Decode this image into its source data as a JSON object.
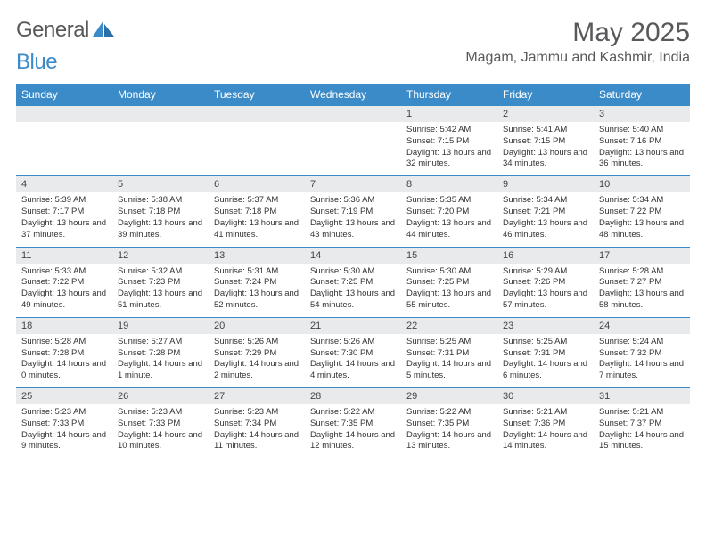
{
  "logo": {
    "word1": "General",
    "word2": "Blue",
    "accent_color": "#3b8bc9",
    "text_color": "#58595b"
  },
  "title": "May 2025",
  "location": "Magam, Jammu and Kashmir, India",
  "header_bg": "#3b8bc9",
  "daynum_bg": "#e9eaeb",
  "days_of_week": [
    "Sunday",
    "Monday",
    "Tuesday",
    "Wednesday",
    "Thursday",
    "Friday",
    "Saturday"
  ],
  "weeks": [
    [
      {
        "n": "",
        "sr": "",
        "ss": "",
        "dl": ""
      },
      {
        "n": "",
        "sr": "",
        "ss": "",
        "dl": ""
      },
      {
        "n": "",
        "sr": "",
        "ss": "",
        "dl": ""
      },
      {
        "n": "",
        "sr": "",
        "ss": "",
        "dl": ""
      },
      {
        "n": "1",
        "sr": "Sunrise: 5:42 AM",
        "ss": "Sunset: 7:15 PM",
        "dl": "Daylight: 13 hours and 32 minutes."
      },
      {
        "n": "2",
        "sr": "Sunrise: 5:41 AM",
        "ss": "Sunset: 7:15 PM",
        "dl": "Daylight: 13 hours and 34 minutes."
      },
      {
        "n": "3",
        "sr": "Sunrise: 5:40 AM",
        "ss": "Sunset: 7:16 PM",
        "dl": "Daylight: 13 hours and 36 minutes."
      }
    ],
    [
      {
        "n": "4",
        "sr": "Sunrise: 5:39 AM",
        "ss": "Sunset: 7:17 PM",
        "dl": "Daylight: 13 hours and 37 minutes."
      },
      {
        "n": "5",
        "sr": "Sunrise: 5:38 AM",
        "ss": "Sunset: 7:18 PM",
        "dl": "Daylight: 13 hours and 39 minutes."
      },
      {
        "n": "6",
        "sr": "Sunrise: 5:37 AM",
        "ss": "Sunset: 7:18 PM",
        "dl": "Daylight: 13 hours and 41 minutes."
      },
      {
        "n": "7",
        "sr": "Sunrise: 5:36 AM",
        "ss": "Sunset: 7:19 PM",
        "dl": "Daylight: 13 hours and 43 minutes."
      },
      {
        "n": "8",
        "sr": "Sunrise: 5:35 AM",
        "ss": "Sunset: 7:20 PM",
        "dl": "Daylight: 13 hours and 44 minutes."
      },
      {
        "n": "9",
        "sr": "Sunrise: 5:34 AM",
        "ss": "Sunset: 7:21 PM",
        "dl": "Daylight: 13 hours and 46 minutes."
      },
      {
        "n": "10",
        "sr": "Sunrise: 5:34 AM",
        "ss": "Sunset: 7:22 PM",
        "dl": "Daylight: 13 hours and 48 minutes."
      }
    ],
    [
      {
        "n": "11",
        "sr": "Sunrise: 5:33 AM",
        "ss": "Sunset: 7:22 PM",
        "dl": "Daylight: 13 hours and 49 minutes."
      },
      {
        "n": "12",
        "sr": "Sunrise: 5:32 AM",
        "ss": "Sunset: 7:23 PM",
        "dl": "Daylight: 13 hours and 51 minutes."
      },
      {
        "n": "13",
        "sr": "Sunrise: 5:31 AM",
        "ss": "Sunset: 7:24 PM",
        "dl": "Daylight: 13 hours and 52 minutes."
      },
      {
        "n": "14",
        "sr": "Sunrise: 5:30 AM",
        "ss": "Sunset: 7:25 PM",
        "dl": "Daylight: 13 hours and 54 minutes."
      },
      {
        "n": "15",
        "sr": "Sunrise: 5:30 AM",
        "ss": "Sunset: 7:25 PM",
        "dl": "Daylight: 13 hours and 55 minutes."
      },
      {
        "n": "16",
        "sr": "Sunrise: 5:29 AM",
        "ss": "Sunset: 7:26 PM",
        "dl": "Daylight: 13 hours and 57 minutes."
      },
      {
        "n": "17",
        "sr": "Sunrise: 5:28 AM",
        "ss": "Sunset: 7:27 PM",
        "dl": "Daylight: 13 hours and 58 minutes."
      }
    ],
    [
      {
        "n": "18",
        "sr": "Sunrise: 5:28 AM",
        "ss": "Sunset: 7:28 PM",
        "dl": "Daylight: 14 hours and 0 minutes."
      },
      {
        "n": "19",
        "sr": "Sunrise: 5:27 AM",
        "ss": "Sunset: 7:28 PM",
        "dl": "Daylight: 14 hours and 1 minute."
      },
      {
        "n": "20",
        "sr": "Sunrise: 5:26 AM",
        "ss": "Sunset: 7:29 PM",
        "dl": "Daylight: 14 hours and 2 minutes."
      },
      {
        "n": "21",
        "sr": "Sunrise: 5:26 AM",
        "ss": "Sunset: 7:30 PM",
        "dl": "Daylight: 14 hours and 4 minutes."
      },
      {
        "n": "22",
        "sr": "Sunrise: 5:25 AM",
        "ss": "Sunset: 7:31 PM",
        "dl": "Daylight: 14 hours and 5 minutes."
      },
      {
        "n": "23",
        "sr": "Sunrise: 5:25 AM",
        "ss": "Sunset: 7:31 PM",
        "dl": "Daylight: 14 hours and 6 minutes."
      },
      {
        "n": "24",
        "sr": "Sunrise: 5:24 AM",
        "ss": "Sunset: 7:32 PM",
        "dl": "Daylight: 14 hours and 7 minutes."
      }
    ],
    [
      {
        "n": "25",
        "sr": "Sunrise: 5:23 AM",
        "ss": "Sunset: 7:33 PM",
        "dl": "Daylight: 14 hours and 9 minutes."
      },
      {
        "n": "26",
        "sr": "Sunrise: 5:23 AM",
        "ss": "Sunset: 7:33 PM",
        "dl": "Daylight: 14 hours and 10 minutes."
      },
      {
        "n": "27",
        "sr": "Sunrise: 5:23 AM",
        "ss": "Sunset: 7:34 PM",
        "dl": "Daylight: 14 hours and 11 minutes."
      },
      {
        "n": "28",
        "sr": "Sunrise: 5:22 AM",
        "ss": "Sunset: 7:35 PM",
        "dl": "Daylight: 14 hours and 12 minutes."
      },
      {
        "n": "29",
        "sr": "Sunrise: 5:22 AM",
        "ss": "Sunset: 7:35 PM",
        "dl": "Daylight: 14 hours and 13 minutes."
      },
      {
        "n": "30",
        "sr": "Sunrise: 5:21 AM",
        "ss": "Sunset: 7:36 PM",
        "dl": "Daylight: 14 hours and 14 minutes."
      },
      {
        "n": "31",
        "sr": "Sunrise: 5:21 AM",
        "ss": "Sunset: 7:37 PM",
        "dl": "Daylight: 14 hours and 15 minutes."
      }
    ]
  ]
}
